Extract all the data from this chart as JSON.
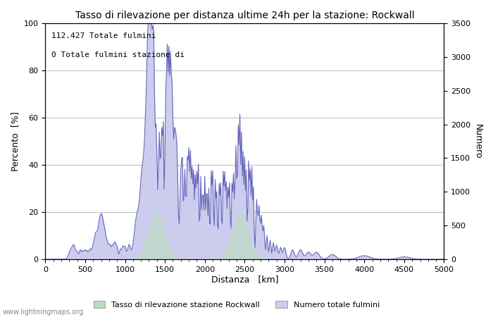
{
  "title": "Tasso di rilevazione per distanza ultime 24h per la stazione: Rockwall",
  "xlabel": "Distanza   [km]",
  "ylabel_left": "Percento  [%]",
  "ylabel_right": "Numero",
  "annotation_line1": "112.427 Totale fulmini",
  "annotation_line2": "0 Totale fulmini stazione di",
  "xlim": [
    0,
    5000
  ],
  "ylim_left": [
    0,
    100
  ],
  "ylim_right": [
    0,
    3500
  ],
  "xticks": [
    0,
    500,
    1000,
    1500,
    2000,
    2500,
    3000,
    3500,
    4000,
    4500,
    5000
  ],
  "yticks_left": [
    0,
    20,
    40,
    60,
    80,
    100
  ],
  "yticks_right": [
    0,
    500,
    1000,
    1500,
    2000,
    2500,
    3000,
    3500
  ],
  "legend_green_label": "Tasso di rilevazione stazione Rockwall",
  "legend_blue_label": "Numero totale fulmini",
  "fill_green_color": "#bbddbb",
  "fill_blue_color": "#ccccee",
  "line_color": "#6666bb",
  "line_width": 0.8,
  "watermark": "www.lightningmaps.org",
  "bg_color": "#ffffff",
  "grid_color": "#bbbbbb",
  "fig_width": 7.0,
  "fig_height": 4.5,
  "dpi": 100
}
